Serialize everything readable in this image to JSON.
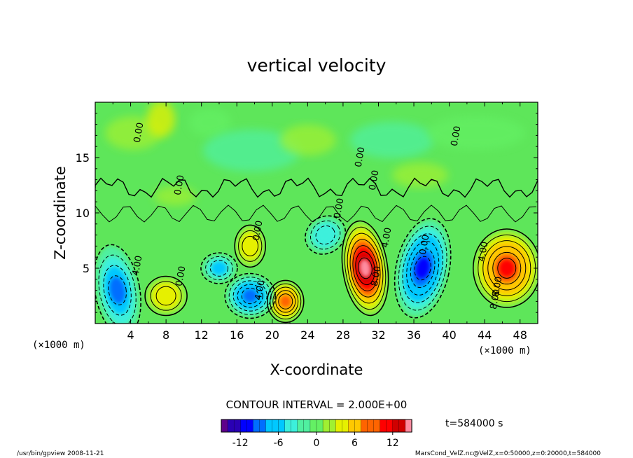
{
  "chart_data": {
    "type": "heatmap",
    "title": "vertical velocity",
    "xlabel": "X-coordinate",
    "ylabel": "Z-coordinate",
    "x_unit": "(×1000 m)",
    "y_unit": "(×1000 m)",
    "xlim": [
      0,
      50
    ],
    "ylim": [
      0,
      20
    ],
    "x_ticks": [
      "4",
      "8",
      "12",
      "16",
      "20",
      "24",
      "28",
      "32",
      "36",
      "40",
      "44",
      "48"
    ],
    "y_ticks": [
      "5",
      "10",
      "15"
    ],
    "contour_interval_text": "CONTOUR INTERVAL = 2.000E+00",
    "contour_labels": [
      "0.00",
      "0.00",
      "0.00",
      "0.00",
      "0.00",
      "0.00",
      "0.00",
      "0.00",
      "4.00",
      "4.00",
      "4.00",
      "4.00",
      "8.00",
      "8.00",
      "8.00",
      "0.00"
    ],
    "colorbar": {
      "min": -15,
      "max": 15,
      "tick_labels": [
        "-12",
        "-6",
        "0",
        "6",
        "12"
      ],
      "tick_values": [
        -12,
        -6,
        0,
        6,
        12
      ],
      "colors": [
        "#5e008a",
        "#2a00b4",
        "#0000ff",
        "#006eff",
        "#00c8ff",
        "#3cf0dc",
        "#50f0a0",
        "#64f064",
        "#a0f032",
        "#e6f000",
        "#ffc800",
        "#ff6400",
        "#ff0000",
        "#d00000",
        "#ff8ca0"
      ]
    },
    "features": [
      {
        "sign": "positive",
        "x": 30.5,
        "z": 5.0,
        "peak": 14
      },
      {
        "sign": "positive",
        "x": 46.5,
        "z": 5.0,
        "peak": 11
      },
      {
        "sign": "positive",
        "x": 21.5,
        "z": 2.0,
        "peak": 9
      },
      {
        "sign": "positive",
        "x": 8.0,
        "z": 2.5,
        "peak": 5
      },
      {
        "sign": "positive",
        "x": 17.5,
        "z": 7.0,
        "peak": 5
      },
      {
        "sign": "negative",
        "x": 37.0,
        "z": 5.0,
        "peak": -11
      },
      {
        "sign": "negative",
        "x": 17.5,
        "z": 2.5,
        "peak": -9
      },
      {
        "sign": "negative",
        "x": 2.5,
        "z": 3.0,
        "peak": -8
      },
      {
        "sign": "negative",
        "x": 26.0,
        "z": 8.0,
        "peak": -5
      },
      {
        "sign": "negative",
        "x": 14.0,
        "z": 5.0,
        "peak": -6
      }
    ]
  },
  "time_label": "t=584000 s",
  "footer": {
    "left": "/usr/bin/gpview   2008-11-21",
    "right": "MarsCond_VelZ.nc@VelZ,x=0:50000,z=0:20000,t=584000"
  }
}
